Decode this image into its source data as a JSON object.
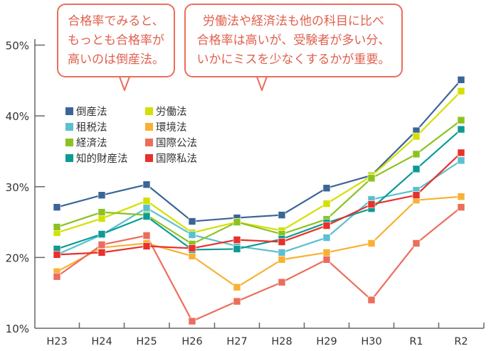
{
  "callouts": [
    {
      "lines": [
        "合格率でみると、",
        "もっとも合格率が",
        "高いのは倒産法。"
      ]
    },
    {
      "lines": [
        "労働法や経済法も他の科目に比べ",
        "合格率は高いが、受験者が多い分、",
        "いかにミスを少なくするかが重要。"
      ]
    }
  ],
  "chart_data": {
    "type": "line",
    "title": "",
    "xlabel": "",
    "ylabel": "",
    "categories": [
      "H23",
      "H24",
      "H25",
      "H26",
      "H27",
      "H28",
      "H29",
      "H30",
      "R1",
      "R2"
    ],
    "yticks": [
      "10%",
      "20%",
      "30%",
      "40%",
      "50%"
    ],
    "ylim": [
      10,
      50
    ],
    "grid": false,
    "legend_placement": "top-left",
    "series": [
      {
        "name": "倒産法",
        "color": "#3b6596",
        "values": [
          27.1,
          28.8,
          30.3,
          25.1,
          25.6,
          26.0,
          29.8,
          31.6,
          37.9,
          45.1
        ]
      },
      {
        "name": "労働法",
        "color": "#d4e000",
        "values": [
          23.5,
          25.5,
          28.0,
          23.5,
          25.0,
          23.8,
          27.6,
          31.5,
          37.1,
          43.5
        ]
      },
      {
        "name": "租税法",
        "color": "#5bc0d0",
        "values": [
          20.4,
          23.2,
          27.0,
          23.2,
          21.6,
          20.7,
          22.8,
          28.2,
          29.5,
          33.7
        ]
      },
      {
        "name": "環境法",
        "color": "#f8b133",
        "values": [
          18.0,
          21.4,
          22.0,
          20.2,
          15.8,
          19.7,
          20.7,
          22.0,
          28.1,
          28.6
        ]
      },
      {
        "name": "経済法",
        "color": "#8cc21f",
        "values": [
          24.3,
          26.4,
          26.0,
          21.9,
          25.0,
          23.3,
          25.4,
          31.2,
          34.6,
          39.4
        ]
      },
      {
        "name": "国際公法",
        "color": "#ec6d5b",
        "values": [
          17.3,
          21.8,
          23.1,
          11.0,
          13.8,
          16.5,
          19.7,
          14.0,
          22.0,
          27.1
        ]
      },
      {
        "name": "知的財産法",
        "color": "#0c9b93",
        "values": [
          21.2,
          23.3,
          25.8,
          21.1,
          21.2,
          22.6,
          24.9,
          26.9,
          32.5,
          38.1
        ]
      },
      {
        "name": "国際私法",
        "color": "#e8312a",
        "values": [
          20.4,
          20.7,
          21.6,
          21.3,
          22.5,
          22.2,
          24.5,
          27.5,
          28.8,
          34.8
        ]
      }
    ]
  }
}
